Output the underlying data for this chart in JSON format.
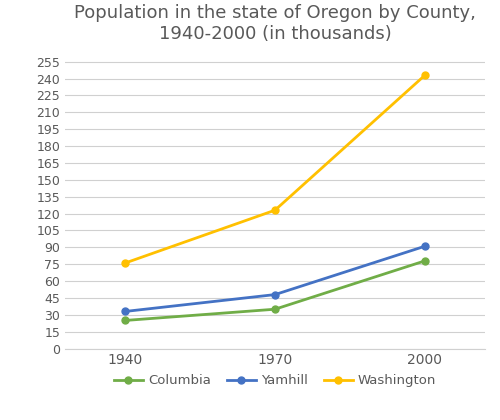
{
  "title": "Population in the state of Oregon by County,\n1940-2000 (in thousands)",
  "x_values": [
    1940,
    1970,
    2000
  ],
  "series": {
    "Columbia": {
      "values": [
        25,
        35,
        78
      ],
      "color": "#70ad47",
      "marker": "o"
    },
    "Yamhill": {
      "values": [
        33,
        48,
        91
      ],
      "color": "#4472c4",
      "marker": "o"
    },
    "Washington": {
      "values": [
        76,
        123,
        243
      ],
      "color": "#ffc000",
      "marker": "o"
    }
  },
  "yticks": [
    0,
    15,
    30,
    45,
    60,
    75,
    90,
    105,
    120,
    135,
    150,
    165,
    180,
    195,
    210,
    225,
    240,
    255
  ],
  "xticks": [
    1940,
    1970,
    2000
  ],
  "ylim": [
    0,
    265
  ],
  "xlim": [
    1928,
    2012
  ],
  "background_color": "#ffffff",
  "grid_color": "#d0d0d0",
  "title_fontsize": 13,
  "title_color": "#595959",
  "tick_label_color": "#595959",
  "legend_ncol": 3
}
